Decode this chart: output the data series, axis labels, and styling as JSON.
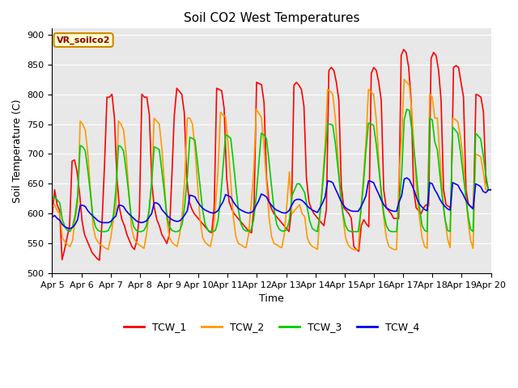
{
  "title": "Soil CO2 West Temperatures",
  "xlabel": "Time",
  "ylabel": "Soil Temperature (C)",
  "ylim": [
    500,
    910
  ],
  "yticks": [
    500,
    550,
    600,
    650,
    700,
    750,
    800,
    850,
    900
  ],
  "xlim_days": [
    0,
    15
  ],
  "xtick_labels": [
    "Apr 5",
    "Apr 6",
    "Apr 7",
    "Apr 8",
    "Apr 9",
    "Apr 10",
    "Apr 11",
    "Apr 12",
    "Apr 13",
    "Apr 14",
    "Apr 15",
    "Apr 16",
    "Apr 17",
    "Apr 18",
    "Apr 19",
    "Apr 20"
  ],
  "legend_label": "VR_soilco2",
  "series_names": [
    "TCW_1",
    "TCW_2",
    "TCW_3",
    "TCW_4"
  ],
  "colors": [
    "#ff0000",
    "#ff9900",
    "#00cc00",
    "#0000ff"
  ],
  "background_color": "#e8e8e8",
  "title_fontsize": 11,
  "axis_label_fontsize": 9,
  "tick_fontsize": 8,
  "legend_fontsize": 9,
  "linewidth": 1.2,
  "TCW_1": [
    595,
    640,
    615,
    605,
    523,
    540,
    560,
    580,
    688,
    690,
    670,
    635,
    588,
    565,
    555,
    545,
    535,
    530,
    525,
    522,
    585,
    680,
    795,
    795,
    800,
    760,
    660,
    610,
    590,
    580,
    565,
    555,
    545,
    540,
    555,
    600,
    800,
    795,
    795,
    765,
    650,
    610,
    590,
    580,
    565,
    558,
    550,
    565,
    660,
    765,
    810,
    805,
    800,
    770,
    660,
    620,
    608,
    600,
    595,
    590,
    585,
    580,
    575,
    570,
    568,
    610,
    810,
    808,
    806,
    776,
    660,
    620,
    608,
    600,
    595,
    590,
    585,
    580,
    575,
    570,
    568,
    615,
    820,
    818,
    816,
    786,
    660,
    620,
    608,
    600,
    595,
    590,
    585,
    580,
    575,
    570,
    605,
    815,
    820,
    815,
    808,
    780,
    660,
    620,
    608,
    600,
    595,
    590,
    585,
    580,
    607,
    840,
    845,
    840,
    820,
    790,
    645,
    610,
    605,
    600,
    592,
    545,
    540,
    537,
    580,
    590,
    583,
    578,
    835,
    845,
    840,
    820,
    790,
    640,
    610,
    605,
    600,
    592,
    592,
    592,
    865,
    875,
    870,
    845,
    790,
    640,
    610,
    605,
    600,
    610,
    615,
    613,
    860,
    870,
    865,
    840,
    790,
    640,
    615,
    612,
    610,
    845,
    848,
    845,
    820,
    795,
    640,
    615,
    612,
    610,
    800,
    798,
    795,
    770,
    655,
    640,
    640
  ],
  "TCW_2": [
    612,
    615,
    605,
    600,
    560,
    553,
    548,
    545,
    555,
    590,
    615,
    755,
    750,
    740,
    700,
    640,
    580,
    560,
    552,
    548,
    545,
    542,
    540,
    560,
    590,
    610,
    755,
    750,
    740,
    700,
    640,
    580,
    560,
    552,
    548,
    545,
    542,
    565,
    600,
    650,
    760,
    755,
    750,
    710,
    650,
    590,
    560,
    552,
    548,
    545,
    565,
    600,
    660,
    760,
    760,
    750,
    710,
    650,
    590,
    560,
    552,
    548,
    545,
    565,
    610,
    670,
    770,
    765,
    762,
    715,
    655,
    595,
    562,
    550,
    548,
    545,
    543,
    565,
    615,
    670,
    775,
    768,
    762,
    715,
    655,
    595,
    562,
    550,
    548,
    545,
    543,
    565,
    615,
    670,
    600,
    605,
    610,
    615,
    600,
    595,
    560,
    550,
    545,
    543,
    540,
    600,
    655,
    715,
    808,
    805,
    800,
    760,
    695,
    630,
    595,
    560,
    548,
    543,
    540,
    540,
    540,
    605,
    660,
    720,
    808,
    804,
    800,
    760,
    693,
    628,
    593,
    560,
    545,
    542,
    540,
    540,
    665,
    730,
    825,
    820,
    815,
    770,
    700,
    630,
    593,
    560,
    545,
    542,
    800,
    795,
    760,
    760,
    695,
    630,
    592,
    558,
    543,
    760,
    758,
    754,
    730,
    695,
    635,
    590,
    556,
    542,
    700,
    698,
    695,
    670,
    640,
    640,
    640
  ],
  "TCW_3": [
    627,
    628,
    623,
    618,
    590,
    578,
    572,
    570,
    578,
    597,
    630,
    714,
    712,
    705,
    672,
    635,
    595,
    578,
    572,
    570,
    570,
    570,
    572,
    580,
    597,
    640,
    714,
    712,
    705,
    672,
    635,
    595,
    578,
    572,
    570,
    570,
    572,
    580,
    607,
    652,
    712,
    710,
    707,
    672,
    635,
    595,
    578,
    572,
    570,
    570,
    572,
    583,
    615,
    662,
    728,
    726,
    723,
    685,
    645,
    606,
    582,
    573,
    570,
    570,
    572,
    588,
    625,
    678,
    732,
    730,
    726,
    688,
    646,
    607,
    583,
    574,
    571,
    571,
    573,
    590,
    630,
    683,
    735,
    732,
    726,
    688,
    646,
    607,
    583,
    574,
    571,
    571,
    573,
    590,
    630,
    640,
    650,
    650,
    643,
    635,
    610,
    587,
    575,
    572,
    570,
    600,
    645,
    700,
    750,
    750,
    748,
    718,
    678,
    638,
    600,
    580,
    572,
    570,
    570,
    570,
    570,
    603,
    648,
    705,
    752,
    750,
    748,
    718,
    678,
    638,
    600,
    580,
    572,
    570,
    570,
    570,
    615,
    665,
    757,
    775,
    773,
    740,
    700,
    658,
    610,
    580,
    572,
    570,
    760,
    757,
    720,
    707,
    665,
    625,
    590,
    572,
    570,
    745,
    740,
    735,
    705,
    670,
    635,
    598,
    574,
    570,
    735,
    730,
    725,
    697,
    665,
    640,
    640
  ],
  "TCW_4": [
    594,
    597,
    592,
    589,
    582,
    578,
    576,
    575,
    577,
    582,
    590,
    614,
    614,
    612,
    605,
    600,
    596,
    592,
    588,
    586,
    585,
    585,
    585,
    587,
    592,
    596,
    614,
    614,
    612,
    605,
    600,
    596,
    592,
    588,
    586,
    585,
    586,
    588,
    594,
    600,
    618,
    618,
    615,
    607,
    602,
    597,
    593,
    590,
    588,
    587,
    588,
    592,
    598,
    605,
    631,
    630,
    628,
    620,
    614,
    609,
    606,
    604,
    602,
    601,
    602,
    605,
    613,
    620,
    632,
    630,
    628,
    620,
    614,
    609,
    606,
    604,
    602,
    601,
    602,
    605,
    614,
    622,
    633,
    631,
    628,
    620,
    614,
    609,
    606,
    604,
    602,
    601,
    602,
    606,
    615,
    622,
    624,
    624,
    622,
    618,
    613,
    609,
    606,
    604,
    602,
    610,
    618,
    628,
    655,
    654,
    652,
    642,
    633,
    623,
    615,
    610,
    607,
    605,
    604,
    604,
    604,
    611,
    620,
    630,
    655,
    654,
    652,
    642,
    633,
    623,
    615,
    610,
    607,
    605,
    604,
    604,
    620,
    630,
    658,
    660,
    657,
    648,
    638,
    625,
    616,
    611,
    607,
    605,
    652,
    650,
    640,
    633,
    624,
    617,
    612,
    608,
    606,
    652,
    650,
    648,
    640,
    633,
    624,
    617,
    612,
    608,
    650,
    648,
    645,
    637,
    635,
    640,
    640
  ]
}
